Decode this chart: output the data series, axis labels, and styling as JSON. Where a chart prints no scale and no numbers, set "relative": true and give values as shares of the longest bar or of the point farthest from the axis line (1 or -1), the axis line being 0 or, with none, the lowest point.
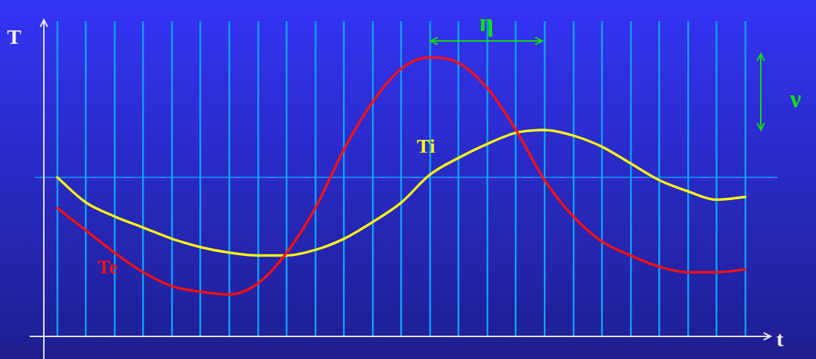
{
  "chart_data": {
    "type": "line",
    "relative": true,
    "xlabel": "t",
    "ylabel": "T",
    "categories": [
      null,
      null,
      null,
      null,
      null,
      null,
      null,
      null,
      null,
      null,
      null,
      null,
      null,
      null,
      null,
      null,
      null,
      null,
      null,
      null,
      null,
      null,
      null,
      null,
      null
    ],
    "series": [
      {
        "name": "Te",
        "color": "#ff1010",
        "values": [
          0.46,
          0.38,
          0.3,
          0.23,
          0.18,
          0.16,
          0.15,
          0.19,
          0.3,
          0.46,
          0.67,
          0.84,
          0.96,
          1,
          0.98,
          0.89,
          0.74,
          0.56,
          0.43,
          0.34,
          0.29,
          0.25,
          0.23,
          0.23,
          0.24
        ]
      },
      {
        "name": "Ti",
        "color": "#ffff10",
        "values": [
          0.57,
          0.48,
          0.43,
          0.39,
          0.35,
          0.32,
          0.3,
          0.29,
          0.29,
          0.31,
          0.35,
          0.41,
          0.48,
          0.58,
          0.64,
          0.69,
          0.73,
          0.74,
          0.72,
          0.68,
          0.62,
          0.56,
          0.52,
          0.49,
          0.5
        ]
      }
    ],
    "ref_lines": [
      {
        "axis": "y",
        "value": 0.57,
        "color": "#10a0ff"
      }
    ],
    "annotations": [
      "η",
      "ν"
    ],
    "grid": "x",
    "marker": "none",
    "line_style": "solid"
  }
}
